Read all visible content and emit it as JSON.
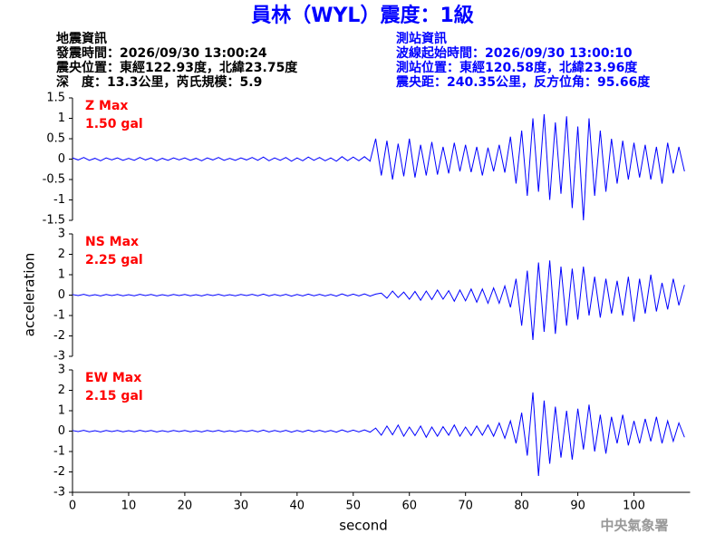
{
  "header": {
    "title": "員林（WYL）震度：1級",
    "info_left": [
      "地震資訊",
      "發震時間：2026/09/30 13:00:24",
      "震央位置：東經122.93度，北緯23.75度",
      "深　度：13.3公里，芮氏規模：5.9"
    ],
    "info_right": [
      "測站資訊",
      "波線起始時間：2026/09/30 13:00:10",
      "測站位置：東經120.58度，北緯23.96度",
      "震央距：240.35公里，反方位角：95.66度"
    ],
    "ylabel": "acceleration",
    "xlabel": "second",
    "footer": "中央氣象署"
  },
  "chart_data": [
    {
      "type": "line",
      "label": "Z Max",
      "max_label": "1.50 gal",
      "color": "#0000ff",
      "xlim": [
        0,
        110
      ],
      "ylim": [
        -1.5,
        1.5
      ],
      "yticks": [
        1.5,
        1,
        0.5,
        0,
        -0.5,
        -1,
        -1.5
      ],
      "x": [
        0,
        1,
        2,
        3,
        4,
        5,
        6,
        7,
        8,
        9,
        10,
        11,
        12,
        13,
        14,
        15,
        16,
        17,
        18,
        19,
        20,
        21,
        22,
        23,
        24,
        25,
        26,
        27,
        28,
        29,
        30,
        31,
        32,
        33,
        34,
        35,
        36,
        37,
        38,
        39,
        40,
        41,
        42,
        43,
        44,
        45,
        46,
        47,
        48,
        49,
        50,
        51,
        52,
        53,
        54,
        55,
        56,
        57,
        58,
        59,
        60,
        61,
        62,
        63,
        64,
        65,
        66,
        67,
        68,
        69,
        70,
        71,
        72,
        73,
        74,
        75,
        76,
        77,
        78,
        79,
        80,
        81,
        82,
        83,
        84,
        85,
        86,
        87,
        88,
        89,
        90,
        91,
        92,
        93,
        94,
        95,
        96,
        97,
        98,
        99,
        100,
        101,
        102,
        103,
        104,
        105,
        106,
        107,
        108,
        109
      ],
      "values": [
        0.03,
        -0.02,
        0.04,
        -0.03,
        0.02,
        -0.04,
        0.03,
        -0.02,
        0.03,
        -0.03,
        0.02,
        -0.03,
        0.04,
        -0.02,
        0.03,
        -0.04,
        0.02,
        -0.03,
        0.03,
        -0.02,
        0.03,
        -0.03,
        0.02,
        -0.04,
        0.03,
        -0.02,
        0.04,
        -0.03,
        0.02,
        -0.03,
        0.03,
        -0.02,
        0.04,
        -0.03,
        0.05,
        -0.04,
        0.03,
        -0.03,
        0.04,
        -0.05,
        0.03,
        -0.04,
        0.05,
        -0.03,
        0.04,
        -0.04,
        0.03,
        -0.05,
        0.06,
        -0.04,
        0.05,
        -0.04,
        0.06,
        -0.05,
        0.5,
        -0.4,
        0.45,
        -0.5,
        0.38,
        -0.42,
        0.5,
        -0.45,
        0.35,
        -0.4,
        0.42,
        -0.38,
        0.3,
        -0.35,
        0.4,
        -0.3,
        0.35,
        -0.32,
        0.3,
        -0.4,
        0.28,
        -0.3,
        0.35,
        -0.33,
        0.55,
        -0.6,
        0.7,
        -0.9,
        1.0,
        -0.8,
        1.1,
        -1.0,
        0.9,
        -0.85,
        1.05,
        -1.2,
        0.8,
        -1.5,
        1.0,
        -0.9,
        0.7,
        -0.8,
        0.5,
        -0.6,
        0.45,
        -0.5,
        0.4,
        -0.45,
        0.35,
        -0.5,
        0.3,
        -0.6,
        0.4,
        -0.35,
        0.3,
        -0.3
      ]
    },
    {
      "type": "line",
      "label": "NS Max",
      "max_label": "2.25 gal",
      "color": "#0000ff",
      "xlim": [
        0,
        110
      ],
      "ylim": [
        -3,
        3
      ],
      "yticks": [
        3,
        2,
        1,
        0,
        -1,
        -2,
        -3
      ],
      "x": [
        0,
        1,
        2,
        3,
        4,
        5,
        6,
        7,
        8,
        9,
        10,
        11,
        12,
        13,
        14,
        15,
        16,
        17,
        18,
        19,
        20,
        21,
        22,
        23,
        24,
        25,
        26,
        27,
        28,
        29,
        30,
        31,
        32,
        33,
        34,
        35,
        36,
        37,
        38,
        39,
        40,
        41,
        42,
        43,
        44,
        45,
        46,
        47,
        48,
        49,
        50,
        51,
        52,
        53,
        54,
        55,
        56,
        57,
        58,
        59,
        60,
        61,
        62,
        63,
        64,
        65,
        66,
        67,
        68,
        69,
        70,
        71,
        72,
        73,
        74,
        75,
        76,
        77,
        78,
        79,
        80,
        81,
        82,
        83,
        84,
        85,
        86,
        87,
        88,
        89,
        90,
        91,
        92,
        93,
        94,
        95,
        96,
        97,
        98,
        99,
        100,
        101,
        102,
        103,
        104,
        105,
        106,
        107,
        108,
        109
      ],
      "values": [
        0.03,
        -0.02,
        0.04,
        -0.03,
        0.02,
        -0.04,
        0.03,
        -0.02,
        0.03,
        -0.03,
        0.02,
        -0.03,
        0.04,
        -0.02,
        0.03,
        -0.04,
        0.02,
        -0.03,
        0.03,
        -0.02,
        0.03,
        -0.03,
        0.02,
        -0.04,
        0.03,
        -0.02,
        0.04,
        -0.03,
        0.02,
        -0.03,
        0.03,
        -0.02,
        0.04,
        -0.03,
        0.05,
        -0.04,
        0.03,
        -0.03,
        0.04,
        -0.05,
        0.03,
        -0.04,
        0.05,
        -0.03,
        0.04,
        -0.04,
        0.03,
        -0.05,
        0.06,
        -0.04,
        0.05,
        -0.04,
        0.06,
        -0.05,
        0.05,
        0.1,
        -0.15,
        0.2,
        -0.12,
        0.15,
        -0.2,
        0.18,
        -0.25,
        0.2,
        -0.22,
        0.25,
        -0.2,
        0.22,
        -0.3,
        0.25,
        -0.28,
        0.3,
        -0.35,
        0.3,
        -0.4,
        0.35,
        -0.4,
        0.45,
        -0.6,
        0.8,
        -1.5,
        1.2,
        -2.2,
        1.6,
        -1.8,
        1.7,
        -1.9,
        1.4,
        -1.5,
        1.3,
        -1.2,
        1.4,
        -1.0,
        0.9,
        -1.1,
        0.8,
        -0.9,
        0.7,
        -1.0,
        0.9,
        -1.3,
        0.8,
        -0.9,
        1.0,
        -0.8,
        0.6,
        -0.7,
        0.8,
        -0.5,
        0.5
      ]
    },
    {
      "type": "line",
      "label": "EW Max",
      "max_label": "2.15 gal",
      "color": "#0000ff",
      "xlim": [
        0,
        110
      ],
      "ylim": [
        -3,
        3
      ],
      "yticks": [
        3,
        2,
        1,
        0,
        -1,
        -2,
        -3
      ],
      "xticks": [
        0,
        10,
        20,
        30,
        40,
        50,
        60,
        70,
        80,
        90,
        100
      ],
      "x": [
        0,
        1,
        2,
        3,
        4,
        5,
        6,
        7,
        8,
        9,
        10,
        11,
        12,
        13,
        14,
        15,
        16,
        17,
        18,
        19,
        20,
        21,
        22,
        23,
        24,
        25,
        26,
        27,
        28,
        29,
        30,
        31,
        32,
        33,
        34,
        35,
        36,
        37,
        38,
        39,
        40,
        41,
        42,
        43,
        44,
        45,
        46,
        47,
        48,
        49,
        50,
        51,
        52,
        53,
        54,
        55,
        56,
        57,
        58,
        59,
        60,
        61,
        62,
        63,
        64,
        65,
        66,
        67,
        68,
        69,
        70,
        71,
        72,
        73,
        74,
        75,
        76,
        77,
        78,
        79,
        80,
        81,
        82,
        83,
        84,
        85,
        86,
        87,
        88,
        89,
        90,
        91,
        92,
        93,
        94,
        95,
        96,
        97,
        98,
        99,
        100,
        101,
        102,
        103,
        104,
        105,
        106,
        107,
        108,
        109
      ],
      "values": [
        0.03,
        -0.02,
        0.04,
        -0.03,
        0.02,
        -0.04,
        0.03,
        -0.02,
        0.03,
        -0.03,
        0.02,
        -0.03,
        0.04,
        -0.02,
        0.03,
        -0.04,
        0.02,
        -0.03,
        0.03,
        -0.02,
        0.03,
        -0.03,
        0.02,
        -0.04,
        0.03,
        -0.02,
        0.04,
        -0.03,
        0.02,
        -0.03,
        0.03,
        -0.02,
        0.04,
        -0.03,
        0.05,
        -0.04,
        0.03,
        -0.03,
        0.04,
        -0.05,
        0.03,
        -0.04,
        0.05,
        -0.03,
        0.04,
        -0.04,
        0.03,
        -0.05,
        0.06,
        -0.04,
        0.05,
        -0.04,
        0.06,
        -0.05,
        0.15,
        -0.2,
        0.25,
        -0.18,
        0.3,
        -0.25,
        0.2,
        -0.22,
        0.25,
        -0.3,
        0.2,
        -0.25,
        0.22,
        -0.2,
        0.3,
        -0.25,
        0.2,
        -0.22,
        0.25,
        -0.2,
        0.3,
        -0.25,
        0.4,
        -0.35,
        0.5,
        -0.6,
        0.9,
        -1.2,
        1.9,
        -2.2,
        1.5,
        -1.6,
        1.2,
        -1.3,
        1.0,
        -1.4,
        1.1,
        -0.9,
        1.3,
        -1.0,
        0.8,
        -1.1,
        0.7,
        -0.6,
        0.8,
        -0.7,
        0.5,
        -0.6,
        0.6,
        -0.5,
        0.7,
        -0.6,
        0.5,
        -0.5,
        0.4,
        -0.3
      ]
    }
  ]
}
